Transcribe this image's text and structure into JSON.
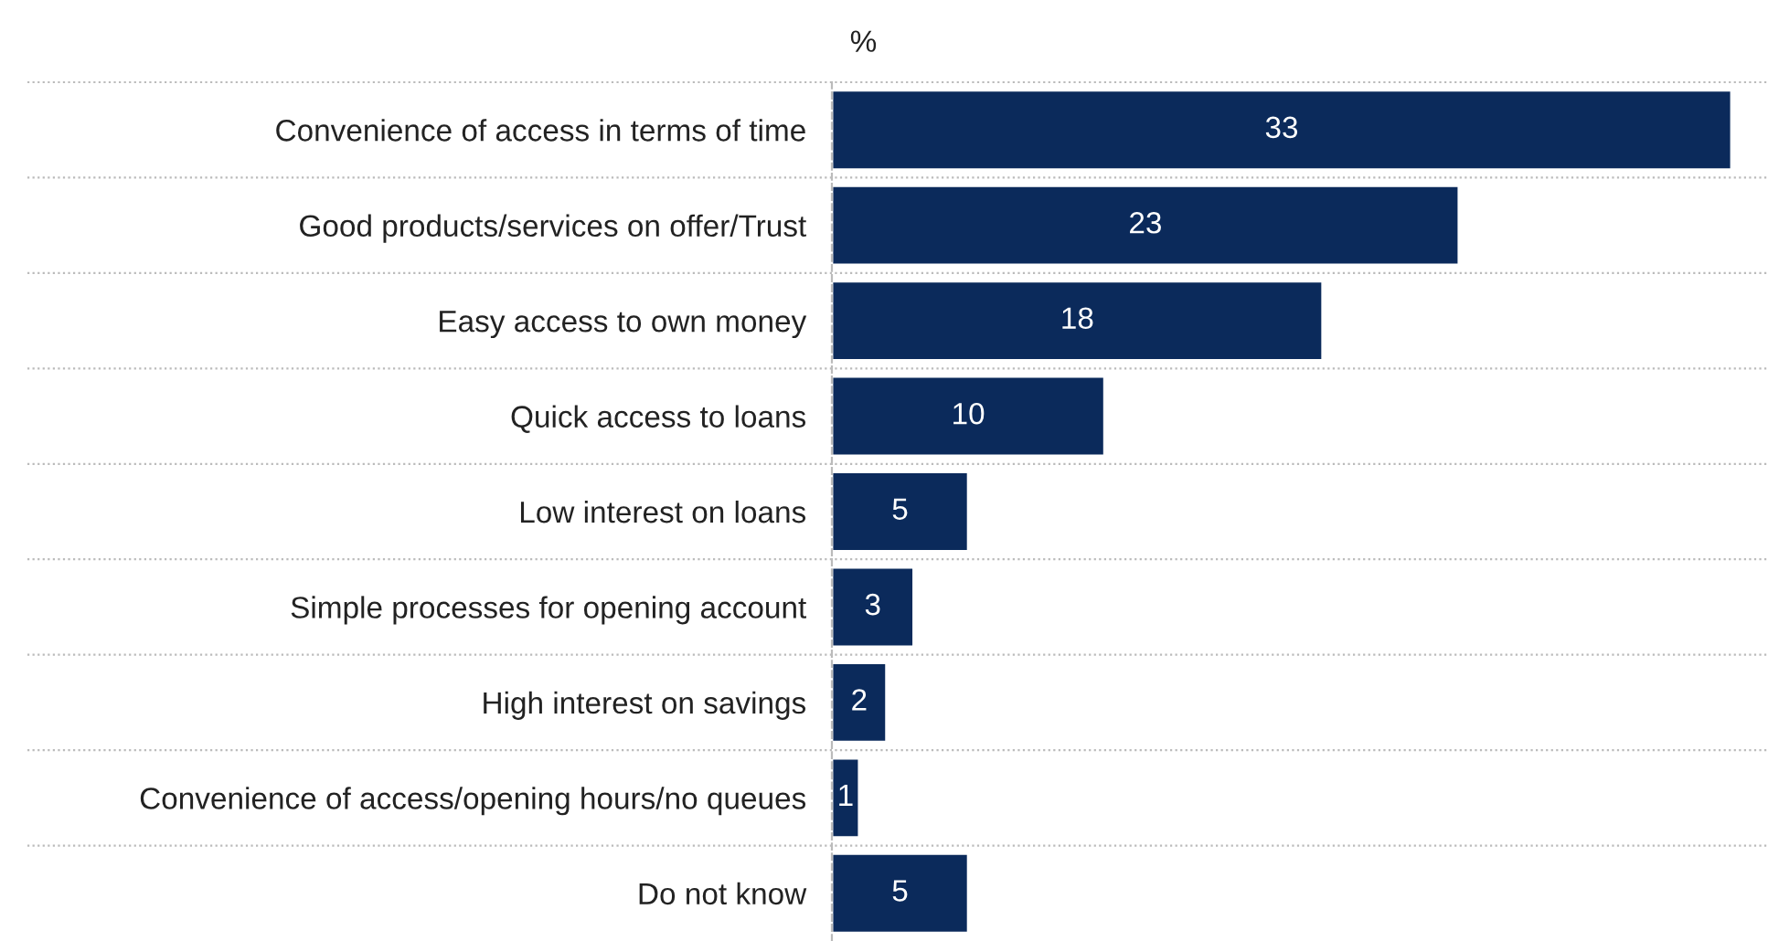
{
  "chart_data": {
    "type": "bar",
    "orientation": "horizontal",
    "xlabel": "%",
    "categories": [
      "Convenience of access in terms of time",
      "Good products/services on offer/Trust",
      "Easy access to own money",
      "Quick access to loans",
      "Low interest on loans",
      "Simple processes for opening account",
      "High interest on savings",
      "Convenience of access/opening hours/no queues",
      "Do not know"
    ],
    "values": [
      33,
      23,
      18,
      10,
      5,
      3,
      2,
      1,
      5
    ],
    "color": "#0b2a5b",
    "xlim": [
      0,
      33
    ],
    "tick_labels": "y",
    "data_labels": true,
    "grid": false,
    "legend": false
  }
}
